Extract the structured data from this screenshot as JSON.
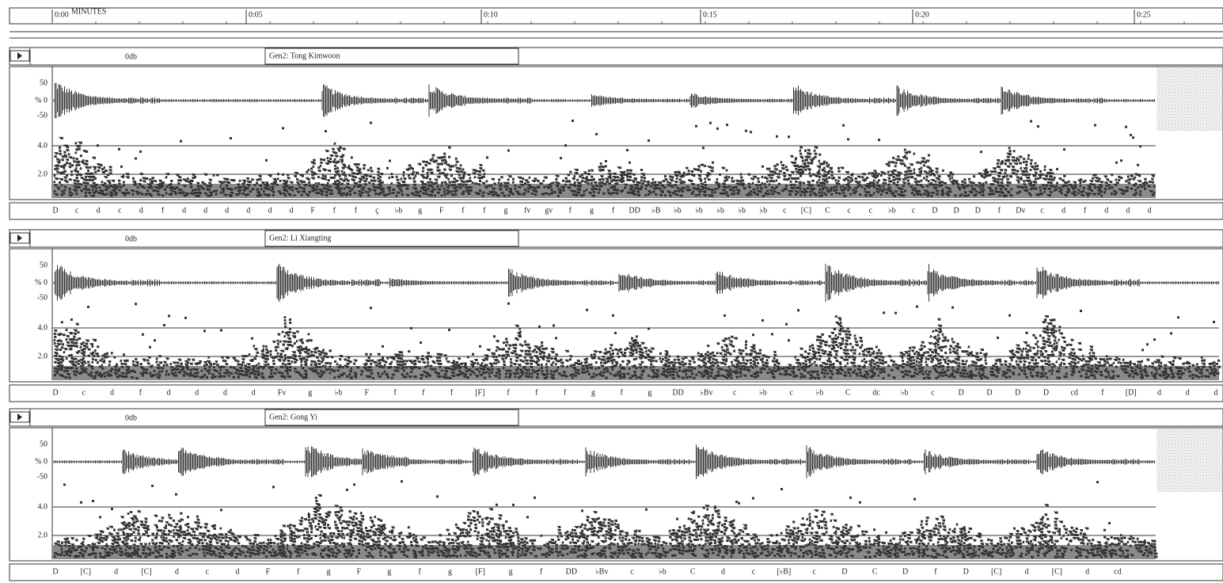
{
  "timeline": {
    "labels": [
      "0:00",
      "0:05",
      "0:10",
      "0:15",
      "0:20",
      "0:25"
    ],
    "unit": "MINUTES"
  },
  "amplitude_labels": [
    "50",
    "% 0",
    "-50"
  ],
  "pitch_labels": [
    "4.0",
    "2.0"
  ],
  "tracks": [
    {
      "gain": "0db",
      "title": "Gen2: Tong Kimwoon",
      "notes": [
        "D",
        "c",
        "d",
        "c",
        "d",
        "f",
        "d",
        "d",
        "d",
        "d",
        "d",
        "d",
        "F",
        "f",
        "f",
        "ç",
        "♭b",
        "g",
        "F",
        "f",
        "f",
        "g",
        "fv",
        "gv",
        "f",
        "g",
        "f",
        "DD",
        "♭B",
        "♭b",
        "♭b",
        "♭b",
        "♭b",
        "♭b",
        "c",
        "[C]",
        "C",
        "c",
        "c",
        "♭b",
        "c",
        "D",
        "D",
        "D",
        "f",
        "Dv",
        "c",
        "d",
        "f",
        "d",
        "d",
        "d"
      ]
    },
    {
      "gain": "0db",
      "title": "Gen2: Li Xiangting",
      "notes": [
        "D",
        "c",
        "d",
        "f",
        "d",
        "d",
        "d",
        "d",
        "Fv",
        "g",
        "♭b",
        "F",
        "f",
        "f",
        "f",
        "[F]",
        "f",
        "f",
        "f",
        "g",
        "f",
        "g",
        "DD",
        "♭Bv",
        "c",
        "♭b",
        "c",
        "♭b",
        "C",
        "dc",
        "♭b",
        "c",
        "D",
        "D",
        "D",
        "D",
        "cd",
        "f",
        "[D]",
        "d",
        "d",
        "d"
      ]
    },
    {
      "gain": "0db",
      "title": "Gen2: Gong Yi",
      "notes": [
        "D",
        "[C]",
        "d",
        "[C]",
        "d",
        "c",
        "d",
        "F",
        "f",
        "g",
        "F",
        "g",
        "f",
        "g",
        "[F]",
        "g",
        "f",
        "DD",
        "♭Bv",
        "c",
        "♭b",
        "C",
        "d",
        "c",
        "[♭B]",
        "c",
        "D",
        "C",
        "D",
        "f",
        "D",
        "[C]",
        "d",
        "[C]",
        "d",
        "cd"
      ]
    }
  ]
}
